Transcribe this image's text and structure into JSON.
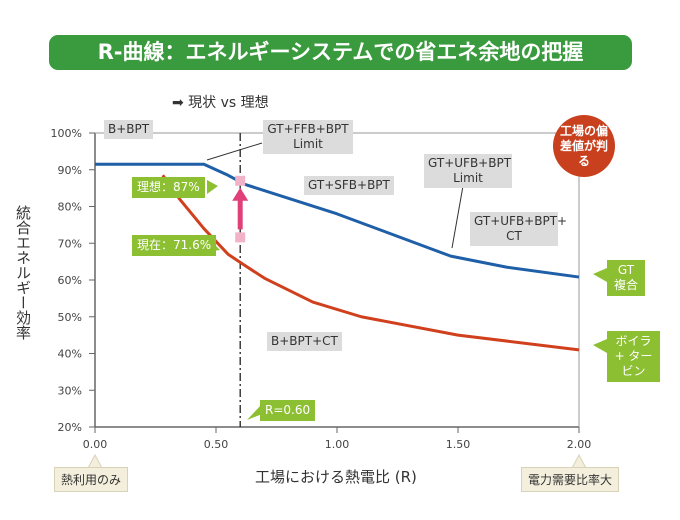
{
  "title": "R-曲線：エネルギーシステムでの省エネ余地の把握",
  "subtitle": "➡ 現状 vs 理想",
  "chart_data": {
    "type": "line",
    "title": "R-曲線：エネルギーシステムでの省エネ余地の把握",
    "xlabel": "工場における熱電比 (R)",
    "ylabel": "統合エネルギー効率",
    "xlim": [
      0,
      2
    ],
    "ylim": [
      20,
      100
    ],
    "xticks": [
      "0.00",
      "0.50",
      "1.00",
      "1.50",
      "2.00"
    ],
    "yticks": [
      "20%",
      "30%",
      "40%",
      "50%",
      "60%",
      "70%",
      "80%",
      "90%",
      "100%"
    ],
    "grid": false,
    "series": [
      {
        "name": "GT 複合",
        "color": "#1f5fa8",
        "x": [
          0,
          0.45,
          0.55,
          0.62,
          1.0,
          1.47,
          1.7,
          2.0
        ],
        "y": [
          91.5,
          91.5,
          88.5,
          86,
          78,
          66.5,
          63.5,
          60.8
        ]
      },
      {
        "name": "ボイラ + タービン",
        "color": "#d0401c",
        "x": [
          0.28,
          0.35,
          0.45,
          0.55,
          0.6,
          0.7,
          0.9,
          1.1,
          1.5,
          2.0
        ],
        "y": [
          88.5,
          82,
          74,
          67,
          64.8,
          60.5,
          54,
          50,
          45,
          41
        ]
      }
    ],
    "reference_line": {
      "x": 0.6,
      "label": "R=0.60"
    },
    "markers": [
      {
        "label": "理想：87%",
        "x": 0.6,
        "y": 87
      },
      {
        "label": "現在：71.6%",
        "x": 0.6,
        "y": 71.6
      }
    ],
    "region_labels": [
      "B+BPT",
      "GT+FFB+BPT\nLimit",
      "GT+SFB+BPT",
      "GT+UFB+BPT\nLimit",
      "GT+UFB+BPT+\nCT",
      "B+BPT+CT"
    ],
    "x_notes": {
      "left": "熱利用のみ",
      "right": "電力需要比率大"
    },
    "callout": "工場の偏差値が判る"
  },
  "colors": {
    "title_bg": "#3a9a3e",
    "label_green": "#8cbf32",
    "marker": "#e0407a"
  }
}
